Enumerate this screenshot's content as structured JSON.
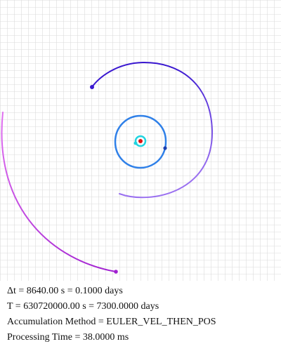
{
  "info": {
    "dt_line": "Δt = 8640.00 s = 0.1000 days",
    "t_line": "T = 630720000.00 s = 7300.0000 days",
    "method_line": "Accumulation Method = EULER_VEL_THEN_POS",
    "processing_line": "Processing Time = 38.0000 ms"
  },
  "colors": {
    "background": "#ffffff",
    "grid": "#dcdcdc",
    "star": "#e01010",
    "inner_orbit": "#2f80e8",
    "innermost_orbit": "#20d4e0",
    "middle_orbit_start": "#9a70f0",
    "middle_orbit_end": "#3a18d0",
    "outer_orbit_start": "#e070f0",
    "outer_orbit_end": "#a020d0"
  }
}
